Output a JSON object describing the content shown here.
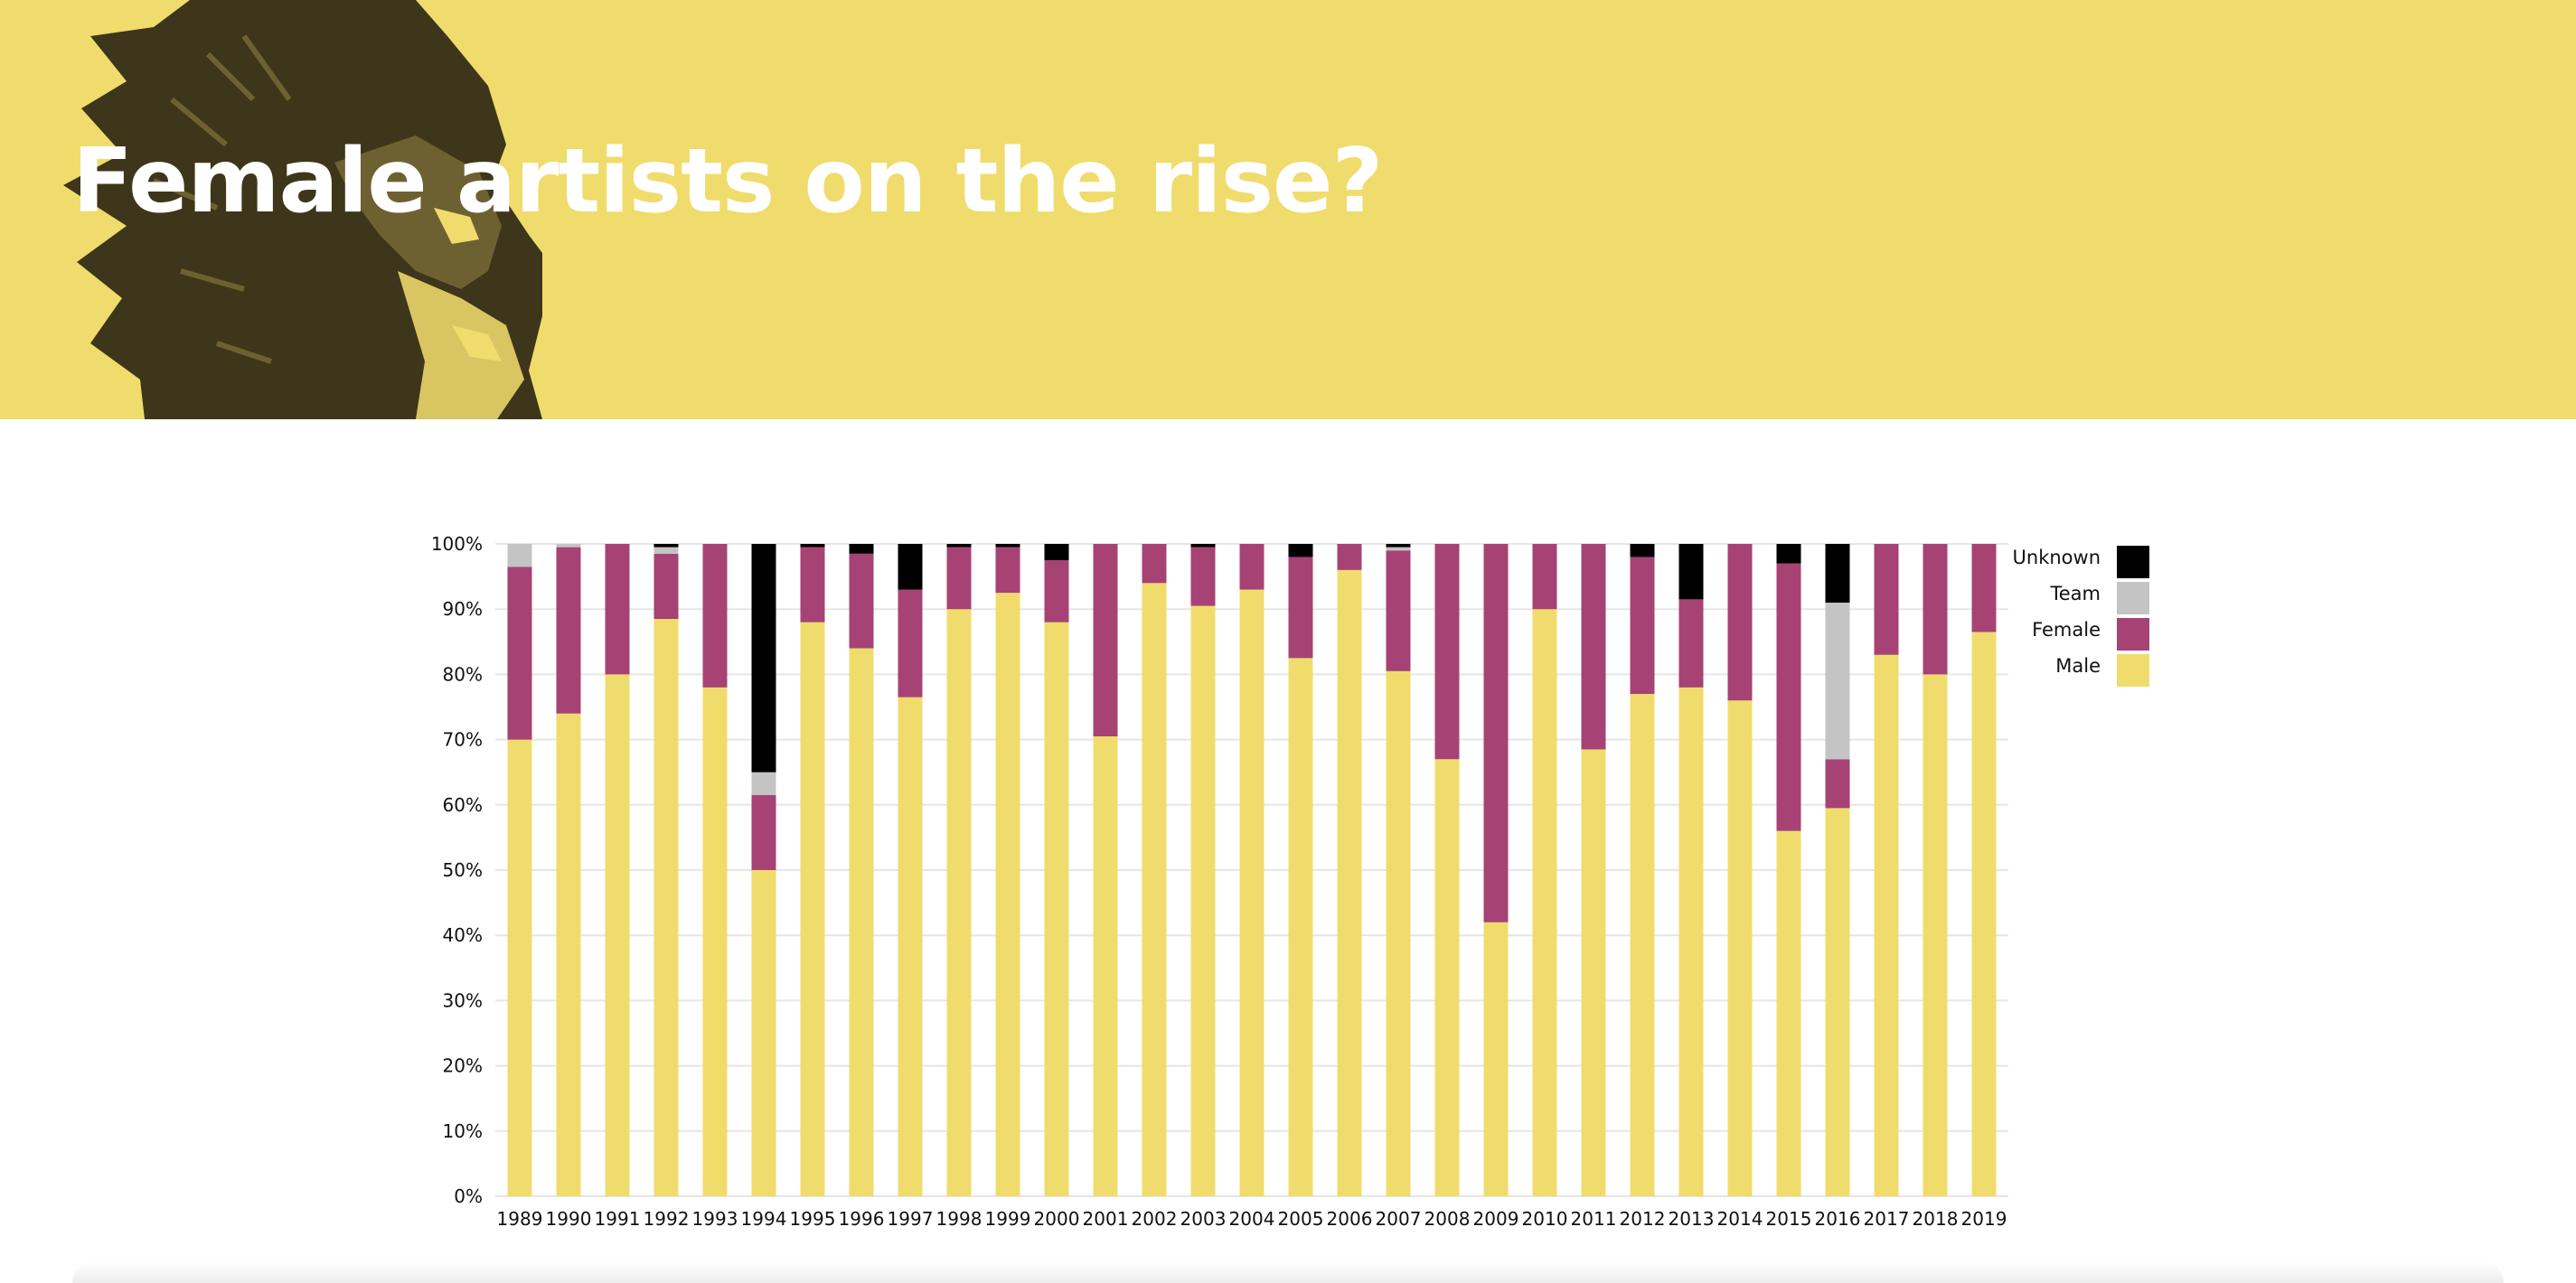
{
  "header": {
    "title": "Female artists on the rise?"
  },
  "colors": {
    "banner": "#f0dc6c",
    "male": "#f0dc6c",
    "female": "#a64374",
    "team": "#c4c4c4",
    "unknown": "#000000",
    "grid": "#e6e6e6"
  },
  "chart_data": {
    "type": "bar",
    "stacked": true,
    "normalized": true,
    "title": "",
    "xlabel": "",
    "ylabel": "",
    "ylim": [
      0,
      100
    ],
    "yticks": [
      "0%",
      "10%",
      "20%",
      "30%",
      "40%",
      "50%",
      "60%",
      "70%",
      "80%",
      "90%",
      "100%"
    ],
    "grid": true,
    "legend_position": "right",
    "legend_order": [
      "Unknown",
      "Team",
      "Female",
      "Male"
    ],
    "categories": [
      "1989",
      "1990",
      "1991",
      "1992",
      "1993",
      "1994",
      "1995",
      "1996",
      "1997",
      "1998",
      "1999",
      "2000",
      "2001",
      "2002",
      "2003",
      "2004",
      "2005",
      "2006",
      "2007",
      "2008",
      "2009",
      "2010",
      "2011",
      "2012",
      "2013",
      "2014",
      "2015",
      "2016",
      "2017",
      "2018",
      "2019"
    ],
    "series": [
      {
        "name": "Male",
        "color": "#f0dc6c",
        "values": [
          70,
          74,
          80,
          88.5,
          78,
          50,
          88,
          84,
          76.5,
          90,
          92.5,
          88,
          70.5,
          94,
          90.5,
          93,
          82.5,
          96,
          80.5,
          67,
          42,
          90,
          68.5,
          77,
          78,
          76,
          56,
          59.5,
          83,
          80,
          86.5
        ]
      },
      {
        "name": "Female",
        "color": "#a64374",
        "values": [
          26.5,
          25.5,
          20,
          10,
          22,
          11.5,
          11.5,
          14.5,
          16.5,
          9.5,
          7,
          9.5,
          29.5,
          6,
          9,
          7,
          15.5,
          4,
          18.5,
          33,
          58,
          10,
          31.5,
          21,
          13.5,
          24,
          41,
          7.5,
          17,
          20,
          13.5
        ]
      },
      {
        "name": "Team",
        "color": "#c4c4c4",
        "values": [
          3.5,
          0.5,
          0,
          1,
          0,
          3.5,
          0,
          0,
          0,
          0,
          0,
          0,
          0,
          0,
          0,
          0,
          0,
          0,
          0.5,
          0,
          0,
          0,
          0,
          0,
          0,
          0,
          0,
          24,
          0,
          0,
          0
        ]
      },
      {
        "name": "Unknown",
        "color": "#000000",
        "values": [
          0,
          0,
          0,
          0.5,
          0,
          35,
          0.5,
          1.5,
          7,
          0.5,
          0.5,
          2.5,
          0,
          0,
          0.5,
          0,
          2,
          0,
          0.5,
          0,
          0,
          0,
          0,
          2,
          8.5,
          0,
          3,
          9,
          0,
          0,
          0
        ]
      }
    ]
  }
}
